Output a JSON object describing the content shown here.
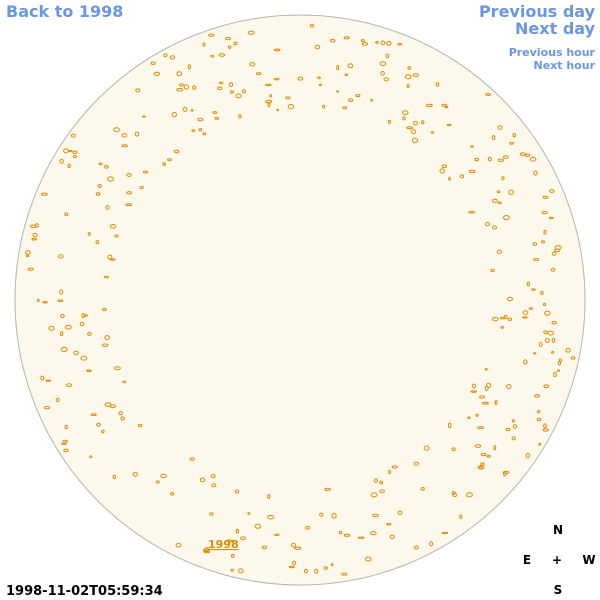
{
  "nav": {
    "back": "Back to 1998",
    "previous_day": "Previous day",
    "next_day": "Next day",
    "previous_hour": "Previous hour",
    "next_hour": "Next hour"
  },
  "timestamp": "1998-11-02T05:59:34",
  "compass": {
    "north": "N",
    "east": "E",
    "center": "+",
    "west": "W",
    "south": "S"
  },
  "disk_label": "1998"
}
